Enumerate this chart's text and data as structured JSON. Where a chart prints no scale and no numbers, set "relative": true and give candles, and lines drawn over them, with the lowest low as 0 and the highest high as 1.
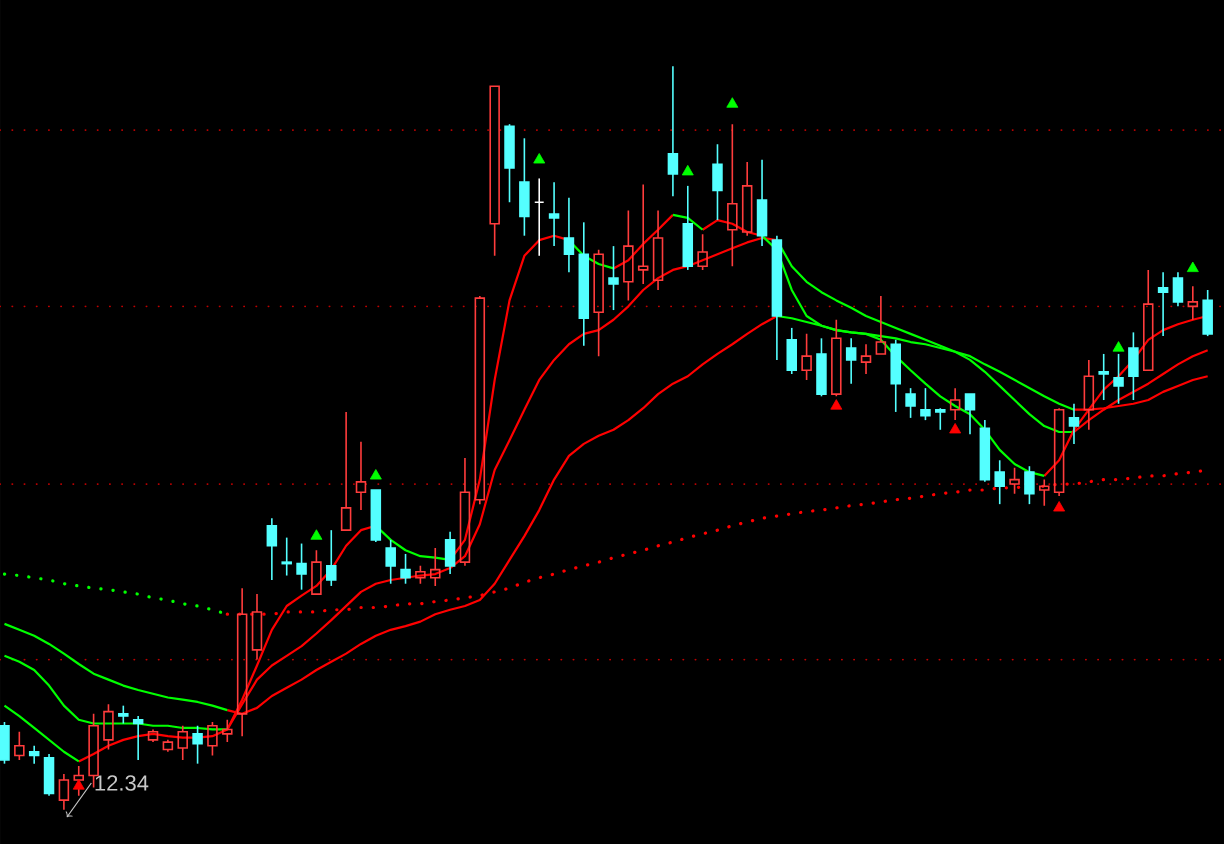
{
  "chart_data": {
    "type": "candlestick",
    "relative": true,
    "categories": [
      null,
      null,
      null,
      null,
      null,
      null,
      null,
      null,
      null,
      null,
      null,
      null,
      null,
      null,
      null,
      null,
      null,
      null,
      null,
      null,
      null,
      null,
      null,
      null,
      null,
      null,
      null,
      null,
      null,
      null,
      null,
      null,
      null,
      null,
      null,
      null,
      null,
      null,
      null,
      null,
      null,
      null,
      null,
      null,
      null,
      null,
      null,
      null,
      null,
      null,
      null,
      null,
      null,
      null,
      null,
      null,
      null,
      null,
      null,
      null,
      null,
      null,
      null,
      null,
      null,
      null,
      null,
      null,
      null,
      null,
      null,
      null,
      null,
      null,
      null,
      null,
      null,
      null,
      null,
      null,
      null,
      null
    ],
    "ohlc": [
      [
        0.113,
        0.118,
        0.062,
        0.067
      ],
      [
        0.073,
        0.105,
        0.067,
        0.086
      ],
      [
        0.078,
        0.086,
        0.062,
        0.073
      ],
      [
        0.07,
        0.075,
        0.019,
        0.022
      ],
      [
        0.013,
        0.048,
        0,
        0.04
      ],
      [
        0.04,
        0.059,
        0.019,
        0.046
      ],
      [
        0.046,
        0.129,
        0.03,
        0.113
      ],
      [
        0.094,
        0.142,
        0.081,
        0.132
      ],
      [
        0.129,
        0.14,
        0.116,
        0.126
      ],
      [
        0.121,
        0.126,
        0.067,
        0.116
      ],
      [
        0.094,
        0.108,
        0.091,
        0.105
      ],
      [
        0.081,
        0.094,
        0.078,
        0.091
      ],
      [
        0.083,
        0.113,
        0.067,
        0.105
      ],
      [
        0.102,
        0.113,
        0.062,
        0.089
      ],
      [
        0.086,
        0.118,
        0.073,
        0.113
      ],
      [
        0.102,
        0.121,
        0.091,
        0.108
      ],
      [
        0.129,
        0.298,
        0.099,
        0.263
      ],
      [
        0.215,
        0.29,
        0.202,
        0.266
      ],
      [
        0.382,
        0.392,
        0.309,
        0.355
      ],
      [
        0.333,
        0.366,
        0.315,
        0.331
      ],
      [
        0.331,
        0.358,
        0.296,
        0.317
      ],
      [
        0.29,
        0.349,
        0.29,
        0.333
      ],
      [
        0.328,
        0.376,
        0.301,
        0.309
      ],
      [
        0.376,
        0.535,
        0.376,
        0.406
      ],
      [
        0.427,
        0.495,
        0.403,
        0.441
      ],
      [
        0.43,
        0.43,
        0.36,
        0.363
      ],
      [
        0.352,
        0.363,
        0.304,
        0.328
      ],
      [
        0.323,
        0.344,
        0.304,
        0.312
      ],
      [
        0.312,
        0.328,
        0.304,
        0.32
      ],
      [
        0.312,
        0.352,
        0.301,
        0.323
      ],
      [
        0.363,
        0.374,
        0.317,
        0.328
      ],
      [
        0.333,
        0.473,
        0.328,
        0.427
      ],
      [
        0.417,
        0.691,
        0.411,
        0.688
      ],
      [
        0.788,
        0.973,
        0.745,
        0.973
      ],
      [
        0.919,
        0.922,
        0.817,
        0.863
      ],
      [
        0.844,
        0.903,
        0.772,
        0.798
      ],
      [
        0.817,
        0.849,
        0.745,
        0.817
      ],
      [
        0.801,
        0.844,
        0.758,
        0.796
      ],
      [
        0.769,
        0.823,
        0.723,
        0.747
      ],
      [
        0.747,
        0.79,
        0.624,
        0.661
      ],
      [
        0.669,
        0.753,
        0.61,
        0.747
      ],
      [
        0.715,
        0.758,
        0.672,
        0.707
      ],
      [
        0.71,
        0.806,
        0.685,
        0.758
      ],
      [
        0.726,
        0.841,
        0.707,
        0.731
      ],
      [
        0.712,
        0.806,
        0.699,
        0.769
      ],
      [
        0.882,
        1,
        0.825,
        0.855
      ],
      [
        0.788,
        0.839,
        0.726,
        0.731
      ],
      [
        0.731,
        0.774,
        0.726,
        0.75
      ],
      [
        0.868,
        0.895,
        0.793,
        0.833
      ],
      [
        0.78,
        0.922,
        0.731,
        0.815
      ],
      [
        0.777,
        0.871,
        0.772,
        0.839
      ],
      [
        0.82,
        0.874,
        0.758,
        0.772
      ],
      [
        0.766,
        0.772,
        0.605,
        0.664
      ],
      [
        0.632,
        0.648,
        0.586,
        0.591
      ],
      [
        0.591,
        0.64,
        0.578,
        0.61
      ],
      [
        0.613,
        0.634,
        0.556,
        0.559
      ],
      [
        0.559,
        0.659,
        0.556,
        0.634
      ],
      [
        0.621,
        0.634,
        0.573,
        0.605
      ],
      [
        0.602,
        0.626,
        0.586,
        0.61
      ],
      [
        0.613,
        0.691,
        0.613,
        0.629
      ],
      [
        0.626,
        0.632,
        0.535,
        0.573
      ],
      [
        0.559,
        0.567,
        0.527,
        0.543
      ],
      [
        0.538,
        0.567,
        0.524,
        0.53
      ],
      [
        0.538,
        0.54,
        0.511,
        0.535
      ],
      [
        0.538,
        0.567,
        0.524,
        0.551
      ],
      [
        0.559,
        0.559,
        0.505,
        0.538
      ],
      [
        0.513,
        0.524,
        0.441,
        0.444
      ],
      [
        0.454,
        0.47,
        0.411,
        0.435
      ],
      [
        0.438,
        0.46,
        0.425,
        0.444
      ],
      [
        0.454,
        0.462,
        0.411,
        0.425
      ],
      [
        0.43,
        0.444,
        0.409,
        0.435
      ],
      [
        0.427,
        0.54,
        0.422,
        0.538
      ],
      [
        0.527,
        0.546,
        0.492,
        0.516
      ],
      [
        0.538,
        0.605,
        0.511,
        0.583
      ],
      [
        0.589,
        0.613,
        0.551,
        0.586
      ],
      [
        0.581,
        0.613,
        0.546,
        0.57
      ],
      [
        0.621,
        0.642,
        0.551,
        0.583
      ],
      [
        0.591,
        0.726,
        0.591,
        0.68
      ],
      [
        0.702,
        0.723,
        0.637,
        0.696
      ],
      [
        0.715,
        0.723,
        0.677,
        0.683
      ],
      [
        0.677,
        0.704,
        0.659,
        0.683
      ],
      [
        0.685,
        0.699,
        0.637,
        0.64
      ]
    ],
    "colors": [
      "#54ffff",
      "#ff3c3c",
      "#54ffff",
      "#54ffff",
      "#ff3c3c",
      "#ff3c3c",
      "#ff3c3c",
      "#ff3c3c",
      "#54ffff",
      "#54ffff",
      "#ff3c3c",
      "#ff3c3c",
      "#ff3c3c",
      "#54ffff",
      "#ff3c3c",
      "#ff3c3c",
      "#ff3c3c",
      "#ff3c3c",
      "#54ffff",
      "#54ffff",
      "#54ffff",
      "#ff3c3c",
      "#54ffff",
      "#ff3c3c",
      "#ff3c3c",
      "#54ffff",
      "#54ffff",
      "#54ffff",
      "#ff3c3c",
      "#ff3c3c",
      "#54ffff",
      "#ff3c3c",
      "#ff3c3c",
      "#ff3c3c",
      "#54ffff",
      "#54ffff",
      "#ffffff",
      "#54ffff",
      "#54ffff",
      "#54ffff",
      "#ff3c3c",
      "#54ffff",
      "#ff3c3c",
      "#ff3c3c",
      "#ff3c3c",
      "#54ffff",
      "#54ffff",
      "#ff3c3c",
      "#54ffff",
      "#ff3c3c",
      "#ff3c3c",
      "#54ffff",
      "#54ffff",
      "#54ffff",
      "#ff3c3c",
      "#54ffff",
      "#ff3c3c",
      "#54ffff",
      "#ff3c3c",
      "#ff3c3c",
      "#54ffff",
      "#54ffff",
      "#54ffff",
      "#54ffff",
      "#ff3c3c",
      "#54ffff",
      "#54ffff",
      "#54ffff",
      "#ff3c3c",
      "#54ffff",
      "#ff3c3c",
      "#ff3c3c",
      "#54ffff",
      "#ff3c3c",
      "#54ffff",
      "#54ffff",
      "#54ffff",
      "#ff3c3c",
      "#54ffff",
      "#54ffff",
      "#ff3c3c",
      "#54ffff"
    ],
    "series": [
      {
        "type": "line",
        "color": "#00ff00",
        "line_style": "dotted",
        "values": [
          0.317,
          0.315,
          0.312,
          0.309,
          0.304,
          0.301,
          0.298,
          0.296,
          0.293,
          0.29,
          0.285,
          0.282,
          0.277,
          0.274,
          0.269,
          0.263,
          null,
          null,
          null,
          null,
          null,
          null,
          null,
          null,
          null,
          null,
          null,
          null,
          null,
          null,
          null,
          null,
          null,
          null,
          null,
          null,
          null,
          null,
          null,
          null,
          null,
          null,
          null,
          null,
          null,
          null,
          null,
          null,
          null,
          null,
          null,
          null,
          null,
          null,
          null,
          null,
          null,
          null,
          null,
          null,
          null,
          null,
          null,
          null,
          null,
          null,
          null,
          null,
          null,
          null,
          null,
          null,
          null,
          null,
          null,
          null,
          null,
          null,
          null,
          null,
          null,
          null
        ]
      },
      {
        "type": "line",
        "color": "#ff0000",
        "line_style": "dotted",
        "values": [
          null,
          null,
          null,
          null,
          null,
          null,
          null,
          null,
          null,
          null,
          null,
          null,
          null,
          null,
          null,
          0.263,
          0.263,
          0.263,
          0.263,
          0.266,
          0.266,
          0.266,
          0.269,
          0.269,
          0.272,
          0.272,
          0.274,
          0.277,
          0.277,
          0.28,
          0.282,
          0.285,
          0.288,
          0.293,
          0.298,
          0.306,
          0.312,
          0.317,
          0.323,
          0.328,
          0.333,
          0.339,
          0.344,
          0.349,
          0.355,
          0.36,
          0.366,
          0.371,
          0.376,
          0.382,
          0.387,
          0.392,
          0.395,
          0.398,
          0.401,
          0.403,
          0.406,
          0.409,
          0.411,
          0.414,
          0.417,
          0.419,
          0.422,
          0.425,
          0.427,
          0.43,
          0.43,
          0.433,
          0.433,
          0.435,
          0.435,
          0.438,
          0.438,
          0.441,
          0.444,
          0.444,
          0.446,
          0.449,
          0.449,
          0.452,
          0.454,
          0.457
        ]
      },
      {
        "type": "line",
        "color": "#00ff00",
        "line_style": "solid",
        "values": [
          0.25,
          0.242,
          0.234,
          0.223,
          0.21,
          0.196,
          0.183,
          0.175,
          0.167,
          0.161,
          0.156,
          0.151,
          0.148,
          0.145,
          0.14,
          0.134,
          null,
          null,
          null,
          null,
          null,
          null,
          null,
          null,
          null,
          null,
          null,
          null,
          null,
          null,
          null,
          null,
          null,
          null,
          null,
          null,
          null,
          null,
          null,
          null,
          null,
          null,
          null,
          null,
          null,
          null,
          null,
          null,
          null,
          null,
          null,
          null,
          0.664,
          0.661,
          0.656,
          0.651,
          0.645,
          0.642,
          0.64,
          0.637,
          0.634,
          0.629,
          0.626,
          0.621,
          0.616,
          0.61,
          0.599,
          0.589,
          0.578,
          0.567,
          0.556,
          0.546,
          0.538,
          null,
          null,
          null,
          null,
          null,
          null,
          null,
          null,
          null
        ]
      },
      {
        "type": "line",
        "color": "#ff0000",
        "line_style": "solid",
        "values": [
          null,
          null,
          null,
          null,
          null,
          null,
          null,
          null,
          null,
          null,
          null,
          null,
          null,
          null,
          null,
          0.134,
          0.129,
          0.137,
          0.153,
          0.164,
          0.175,
          0.188,
          0.199,
          0.21,
          0.223,
          0.234,
          0.242,
          0.247,
          0.253,
          0.263,
          0.269,
          0.274,
          0.282,
          0.304,
          0.336,
          0.368,
          0.403,
          0.444,
          0.476,
          0.492,
          0.503,
          0.511,
          0.524,
          0.54,
          0.559,
          0.573,
          0.583,
          0.599,
          0.613,
          0.626,
          0.64,
          0.653,
          0.664,
          null,
          null,
          null,
          null,
          null,
          null,
          null,
          null,
          null,
          null,
          null,
          null,
          null,
          null,
          null,
          null,
          null,
          null,
          null,
          0.538,
          0.538,
          0.54,
          0.543,
          0.546,
          0.551,
          0.562,
          0.57,
          0.578,
          0.583
        ]
      },
      {
        "type": "line",
        "color": "#00ff00",
        "line_style": "solid",
        "values": [
          0.207,
          0.199,
          0.188,
          0.167,
          0.14,
          0.121,
          0.116,
          0.116,
          0.116,
          0.116,
          0.113,
          0.113,
          0.11,
          0.11,
          0.108,
          0.108,
          null,
          null,
          null,
          null,
          null,
          null,
          null,
          null,
          null,
          null,
          null,
          null,
          null,
          null,
          null,
          null,
          null,
          null,
          null,
          null,
          null,
          null,
          null,
          null,
          null,
          null,
          null,
          null,
          null,
          null,
          null,
          null,
          null,
          null,
          null,
          null,
          0.766,
          0.731,
          0.71,
          0.696,
          0.685,
          0.675,
          0.664,
          0.656,
          0.648,
          0.64,
          0.632,
          0.624,
          0.616,
          0.605,
          0.589,
          0.57,
          0.551,
          0.532,
          0.516,
          0.508,
          0.508,
          null,
          null,
          null,
          null,
          null,
          null,
          null,
          null,
          null
        ]
      },
      {
        "type": "line",
        "color": "#ff0000",
        "line_style": "solid",
        "values": [
          null,
          null,
          null,
          null,
          null,
          null,
          null,
          null,
          null,
          null,
          null,
          null,
          null,
          null,
          null,
          0.108,
          0.142,
          0.175,
          0.194,
          0.207,
          0.22,
          0.237,
          0.255,
          0.274,
          0.293,
          0.304,
          0.309,
          0.312,
          0.315,
          0.317,
          0.325,
          0.341,
          0.384,
          0.457,
          0.497,
          0.538,
          0.578,
          0.605,
          0.626,
          0.64,
          0.645,
          0.659,
          0.677,
          0.699,
          0.715,
          0.726,
          0.731,
          0.739,
          0.747,
          0.755,
          0.763,
          0.769,
          0.766,
          null,
          null,
          null,
          null,
          null,
          null,
          null,
          null,
          null,
          null,
          null,
          null,
          null,
          null,
          null,
          null,
          null,
          null,
          null,
          0.508,
          0.524,
          0.538,
          0.551,
          0.562,
          0.573,
          0.586,
          0.599,
          0.61,
          0.618
        ]
      },
      {
        "type": "line",
        "color": "#00ff00",
        "line_style": "solid",
        "values": [
          0.14,
          0.126,
          0.11,
          0.094,
          0.078,
          0.065,
          null,
          null,
          null,
          null,
          null,
          null,
          null,
          null,
          null,
          null,
          null,
          null,
          null,
          null,
          null,
          null,
          null,
          null,
          null,
          0.382,
          0.363,
          0.349,
          0.341,
          0.339,
          0.336,
          null,
          null,
          null,
          null,
          null,
          null,
          null,
          0.766,
          0.745,
          0.734,
          0.728,
          null,
          null,
          null,
          0.8,
          0.796,
          0.78,
          null,
          null,
          null,
          0.772,
          0.753,
          0.699,
          0.664,
          0.651,
          0.645,
          0.642,
          0.64,
          0.632,
          0.61,
          0.591,
          0.573,
          0.556,
          0.543,
          0.532,
          0.511,
          0.484,
          0.465,
          0.454,
          0.449,
          null,
          null,
          null,
          null,
          null,
          null,
          null,
          null,
          null,
          null,
          null
        ]
      },
      {
        "type": "line",
        "color": "#ff0000",
        "line_style": "solid",
        "values": [
          null,
          null,
          null,
          null,
          null,
          0.065,
          0.075,
          0.086,
          0.094,
          0.099,
          0.102,
          0.099,
          0.097,
          0.097,
          0.099,
          0.108,
          0.148,
          0.194,
          0.242,
          0.274,
          0.288,
          0.301,
          0.323,
          0.355,
          0.376,
          0.382,
          null,
          null,
          null,
          null,
          0.336,
          0.363,
          0.444,
          0.578,
          0.685,
          0.745,
          0.766,
          0.772,
          0.766,
          null,
          null,
          0.728,
          0.739,
          0.761,
          0.78,
          0.8,
          null,
          0.78,
          0.793,
          0.788,
          0.777,
          0.772,
          null,
          null,
          null,
          null,
          null,
          null,
          null,
          null,
          null,
          null,
          null,
          null,
          null,
          null,
          null,
          null,
          null,
          null,
          0.449,
          0.47,
          0.511,
          0.538,
          0.565,
          0.583,
          0.605,
          0.632,
          0.645,
          0.653,
          0.659,
          0.664
        ]
      },
      {
        "type": "scatter",
        "color": "#00ff00",
        "marker": "triangle",
        "values": [
          null,
          null,
          null,
          null,
          null,
          null,
          null,
          null,
          null,
          null,
          null,
          null,
          null,
          null,
          null,
          null,
          null,
          null,
          null,
          null,
          null,
          0.368,
          null,
          null,
          null,
          0.449,
          null,
          null,
          null,
          null,
          null,
          null,
          null,
          null,
          null,
          null,
          0.874,
          null,
          null,
          null,
          null,
          null,
          null,
          null,
          null,
          null,
          0.858,
          null,
          null,
          0.949,
          null,
          null,
          null,
          null,
          null,
          null,
          null,
          null,
          null,
          null,
          null,
          null,
          null,
          null,
          null,
          null,
          null,
          null,
          null,
          null,
          null,
          null,
          null,
          null,
          null,
          0.621,
          null,
          null,
          null,
          null,
          0.728,
          null
        ]
      },
      {
        "type": "scatter",
        "color": "#ff0000",
        "marker": "triangle",
        "values": [
          null,
          null,
          null,
          null,
          null,
          0.032,
          null,
          null,
          null,
          null,
          null,
          null,
          null,
          null,
          null,
          null,
          null,
          null,
          null,
          null,
          null,
          null,
          null,
          null,
          null,
          null,
          null,
          null,
          null,
          null,
          null,
          null,
          null,
          null,
          null,
          null,
          null,
          null,
          null,
          null,
          null,
          null,
          null,
          null,
          null,
          null,
          null,
          null,
          null,
          null,
          null,
          null,
          null,
          null,
          null,
          null,
          0.543,
          null,
          null,
          null,
          null,
          null,
          null,
          null,
          0.511,
          null,
          null,
          null,
          null,
          null,
          null,
          0.406,
          null,
          null,
          null,
          null,
          null,
          null,
          null,
          null,
          null,
          null
        ]
      }
    ],
    "ref_lines": [
      {
        "axis": "y",
        "value": 0.914,
        "color": "#c00000",
        "line_style": "dotted"
      },
      {
        "axis": "y",
        "value": 0.677,
        "color": "#c00000",
        "line_style": "dotted"
      },
      {
        "axis": "y",
        "value": 0.438,
        "color": "#c00000",
        "line_style": "dotted"
      },
      {
        "axis": "y",
        "value": 0.202,
        "color": "#c00000",
        "line_style": "dotted"
      }
    ],
    "annotations": [
      "12.34"
    ]
  }
}
